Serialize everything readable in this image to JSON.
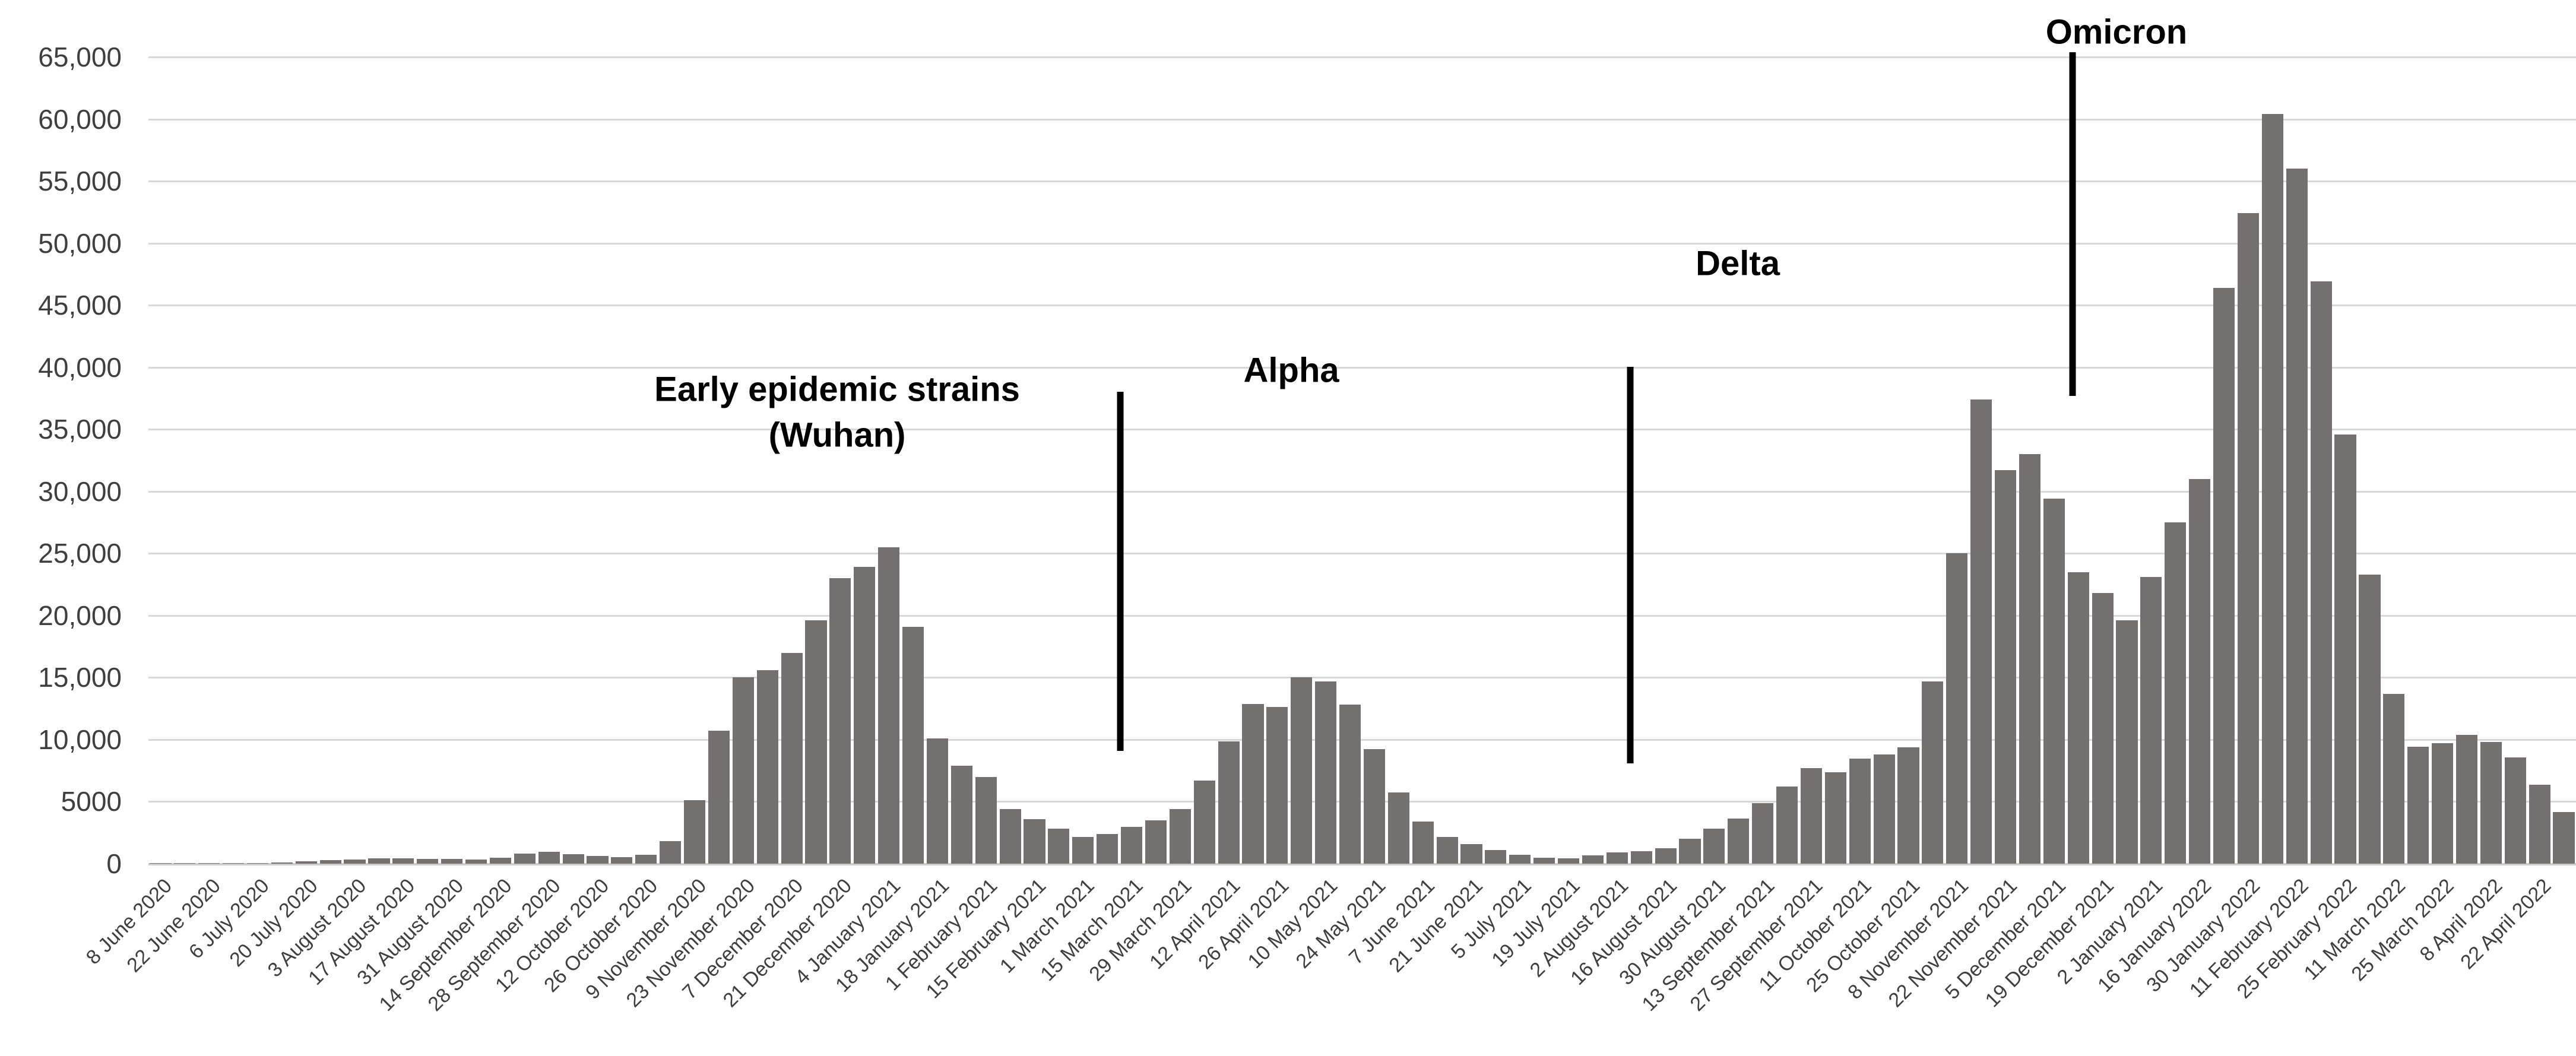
{
  "chart_data": {
    "type": "bar",
    "title": "",
    "xlabel": "",
    "ylabel": "",
    "grid": true,
    "legend": null,
    "colors": {
      "bar": "#757070",
      "gridline": "#d9d9d9",
      "axis_text": "#3f3f3f",
      "annotation_text": "#000000",
      "divider": "#000000",
      "background": "#ffffff"
    },
    "y_axis": {
      "min": 0,
      "max": 65000,
      "step": 5000,
      "tick_labels": [
        "0",
        "5000",
        "10,000",
        "15,000",
        "20,000",
        "25,000",
        "30,000",
        "35,000",
        "40,000",
        "45,000",
        "50,000",
        "55,000",
        "60,000",
        "65,000"
      ]
    },
    "x_axis": {
      "label_every_n_bars": 2,
      "rotation_deg": 45,
      "labels": [
        "8 June 2020",
        "22 June 2020",
        "6 July 2020",
        "20 July 2020",
        "3 August 2020",
        "17 August 2020",
        "31 August 2020",
        "14 September 2020",
        "28 September 2020",
        "12 October 2020",
        "26 October 2020",
        "9 November 2020",
        "23 November 2020",
        "7 December 2020",
        "21 December 2020",
        "4 January 2021",
        "18 January 2021",
        "1 February 2021",
        "15 February 2021",
        "1 March 2021",
        "15 March 2021",
        "29 March 2021",
        "12 April 2021",
        "26 April 2021",
        "10 May 2021",
        "24 May 2021",
        "7 June 2021",
        "21 June 2021",
        "5 July 2021",
        "19 July 2021",
        "2 August 2021",
        "16 August 2021",
        "30 August 2021",
        "13 September 2021",
        "27 September 2021",
        "11 October 2021",
        "25 October 2021",
        "8 November 2021",
        "22 November 2021",
        "5 December 2021",
        "19 December 2021",
        "2 January 2021",
        "16 January 2022",
        "30 January 2022",
        "11 February 2022",
        "25 February 2022",
        "11 March 2022",
        "25 March 2022",
        "8 April 2022",
        "22 April 2022"
      ]
    },
    "values": [
      30,
      40,
      45,
      55,
      70,
      110,
      200,
      280,
      340,
      410,
      430,
      400,
      360,
      320,
      500,
      800,
      950,
      750,
      600,
      550,
      700,
      1800,
      5100,
      10700,
      15000,
      15600,
      17000,
      19600,
      23000,
      23900,
      25500,
      19100,
      10100,
      7900,
      7000,
      4400,
      3600,
      2830,
      2150,
      2400,
      2980,
      3470,
      4400,
      6720,
      9830,
      12860,
      12630,
      15040,
      14700,
      12810,
      9250,
      5740,
      3400,
      2130,
      1600,
      1100,
      700,
      500,
      450,
      650,
      890,
      1000,
      1250,
      2000,
      2800,
      3650,
      4900,
      6200,
      7700,
      7350,
      8450,
      8800,
      9380,
      14700,
      25000,
      37400,
      31700,
      33000,
      29400,
      23500,
      21800,
      19600,
      23100,
      27500,
      31000,
      46400,
      52400,
      60400,
      56000,
      46900,
      34600,
      23300,
      13700,
      9400,
      9700,
      10400,
      9800,
      8550,
      6380,
      4150
    ],
    "bar_width_ratio": 0.884,
    "annotations": {
      "period_labels": [
        {
          "id": "wuhan",
          "lines": [
            "Early epidemic strains",
            "(Wuhan)"
          ],
          "x_pct": 28.37,
          "y_pct": 44.1
        },
        {
          "id": "alpha",
          "lines": [
            "Alpha"
          ],
          "x_pct": 47.08,
          "y_pct": 38.9
        },
        {
          "id": "delta",
          "lines": [
            "Delta"
          ],
          "x_pct": 65.47,
          "y_pct": 25.7
        },
        {
          "id": "omicron",
          "lines": [
            "Omicron"
          ],
          "x_pct": 81.07,
          "y_pct": -3.0
        }
      ],
      "dividers": [
        {
          "id": "divider-wuhan-alpha",
          "x_pct": 40.03,
          "top_pct": 41.5,
          "height_pct": 44.5
        },
        {
          "id": "divider-alpha-delta",
          "x_pct": 61.04,
          "top_pct": 38.4,
          "height_pct": 49.2
        },
        {
          "id": "divider-delta-omicron",
          "x_pct": 79.26,
          "top_pct": -0.6,
          "height_pct": 42.6
        }
      ]
    }
  }
}
